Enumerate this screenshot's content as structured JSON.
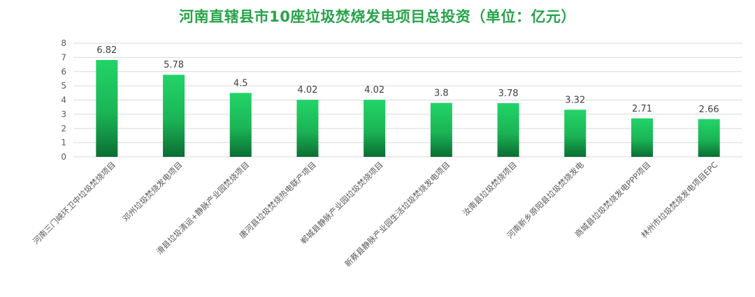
{
  "chart_data": {
    "type": "bar",
    "title": "河南直辖县市10座垃圾焚烧发电项目总投资（单位：亿元）",
    "xlabel": "",
    "ylabel": "",
    "ylim": [
      0,
      8
    ],
    "yticks": [
      0,
      1,
      2,
      3,
      4,
      5,
      6,
      7,
      8
    ],
    "grid": true,
    "legend": "none",
    "categories": [
      "河南三门峡环卫中垃圾焚烧项目",
      "邓州垃圾焚烧发电项目",
      "滑县垃圾清运+静脉产业园焚烧项目",
      "唐河县垃圾焚烧热电联产项目",
      "郸城县静脉产业园垃圾焚烧项目",
      "新蔡县静脉产业园生活垃圾焚烧发电项目",
      "汝南县垃圾焚烧项目",
      "河南新乡原阳县垃圾焚烧发电",
      "商城县垃圾焚烧发电PPP项目",
      "林州市垃圾焚烧发电项目EPC"
    ],
    "values": [
      6.82,
      5.78,
      4.5,
      4.02,
      4.02,
      3.8,
      3.78,
      3.32,
      2.71,
      2.66
    ],
    "value_labels": [
      "6.82",
      "5.78",
      "4.5",
      "4.02",
      "4.02",
      "3.8",
      "3.78",
      "3.32",
      "2.71",
      "2.66"
    ],
    "colors": {
      "title": "#27a34a",
      "bar_top": "#22d468",
      "bar_bottom": "#0a6e33",
      "grid": "#d9d9d9",
      "axis_text": "#595959"
    }
  }
}
